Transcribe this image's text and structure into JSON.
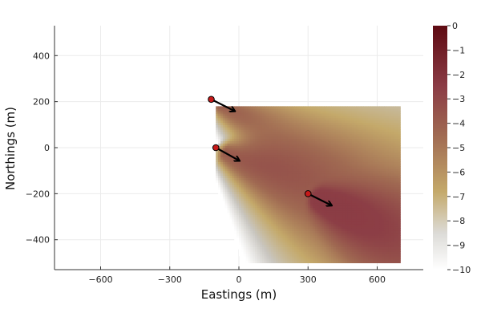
{
  "chart_data": {
    "type": "heatmap",
    "title": "",
    "xlabel": "Eastings (m)",
    "ylabel": "Northings (m)",
    "xlim": [
      -800,
      800
    ],
    "ylim": [
      -530,
      530
    ],
    "xticks": [
      -600,
      -300,
      0,
      300,
      600
    ],
    "yticks": [
      -400,
      -200,
      0,
      200,
      400
    ],
    "xtick_labels": [
      "−600",
      "−300",
      "0",
      "300",
      "600"
    ],
    "ytick_labels": [
      "−400",
      "−200",
      "0",
      "200",
      "400"
    ],
    "grid": true,
    "colorbar": {
      "range": [
        -10,
        0
      ],
      "ticks": [
        0,
        -1,
        -2,
        -3,
        -4,
        -5,
        -6,
        -7,
        -8,
        -9,
        -10
      ],
      "tick_labels": [
        "0",
        "−1",
        "−2",
        "−3",
        "−4",
        "−5",
        "−6",
        "−7",
        "−8",
        "−9",
        "−10"
      ],
      "colormap": [
        "#ffffff",
        "#c9c6c0",
        "#c4a96a",
        "#a06a52",
        "#8b3c45",
        "#5e0a12"
      ]
    },
    "heatmap_extent": {
      "x": [
        -100,
        700
      ],
      "y": [
        -500,
        180
      ]
    },
    "sources": [
      {
        "x": -120,
        "y": 210,
        "u": 90,
        "v": -45
      },
      {
        "x": -100,
        "y": 0,
        "u": 90,
        "v": -50
      },
      {
        "x": 300,
        "y": -200,
        "u": 90,
        "v": -45
      }
    ],
    "source_color": "#c61a1a",
    "arrow_color": "#000000"
  }
}
